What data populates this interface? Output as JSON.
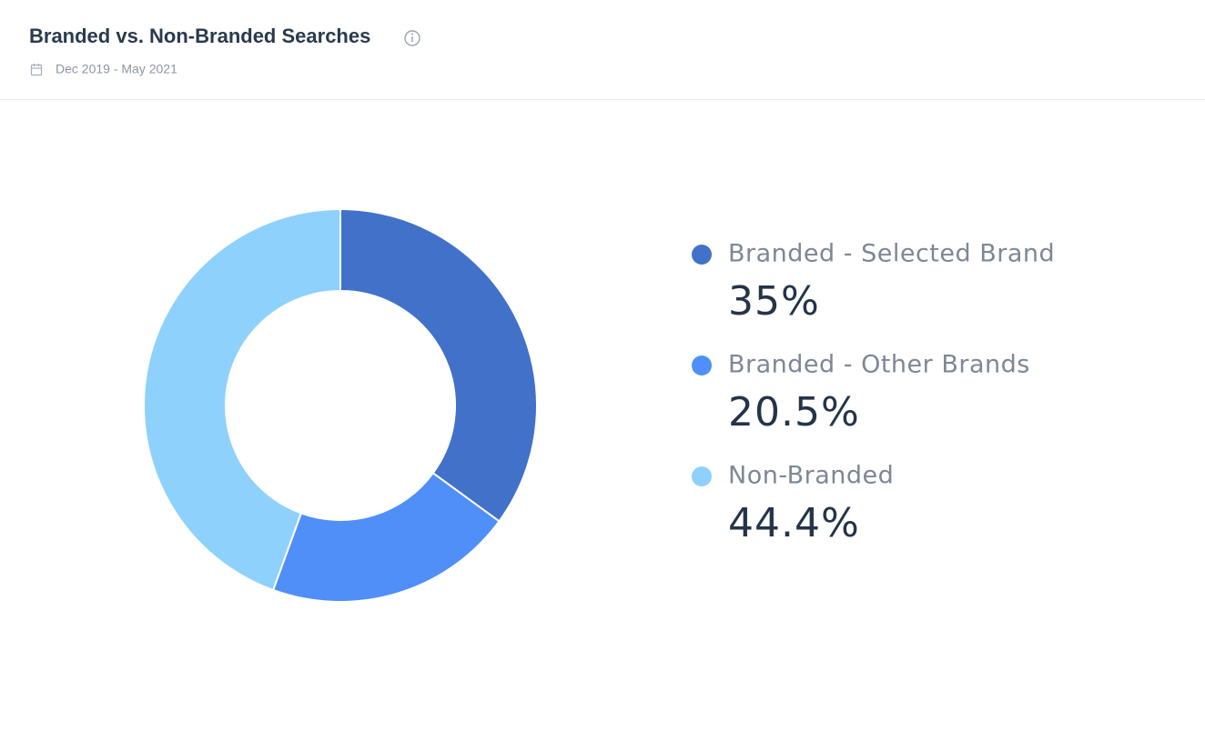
{
  "chart_data": {
    "type": "donut",
    "title": "Branded vs. Non-Branded Searches",
    "subtitle": "Dec 2019 - May 2021",
    "categories": [
      "Branded - Selected Brand",
      "Branded - Other Brands",
      "Non-Branded"
    ],
    "values": [
      35,
      20.5,
      44.4
    ],
    "value_labels": [
      "35%",
      "20.5%",
      "44.4%"
    ],
    "colors": [
      "#4171c9",
      "#4f8ff7",
      "#8ed1fc"
    ]
  }
}
